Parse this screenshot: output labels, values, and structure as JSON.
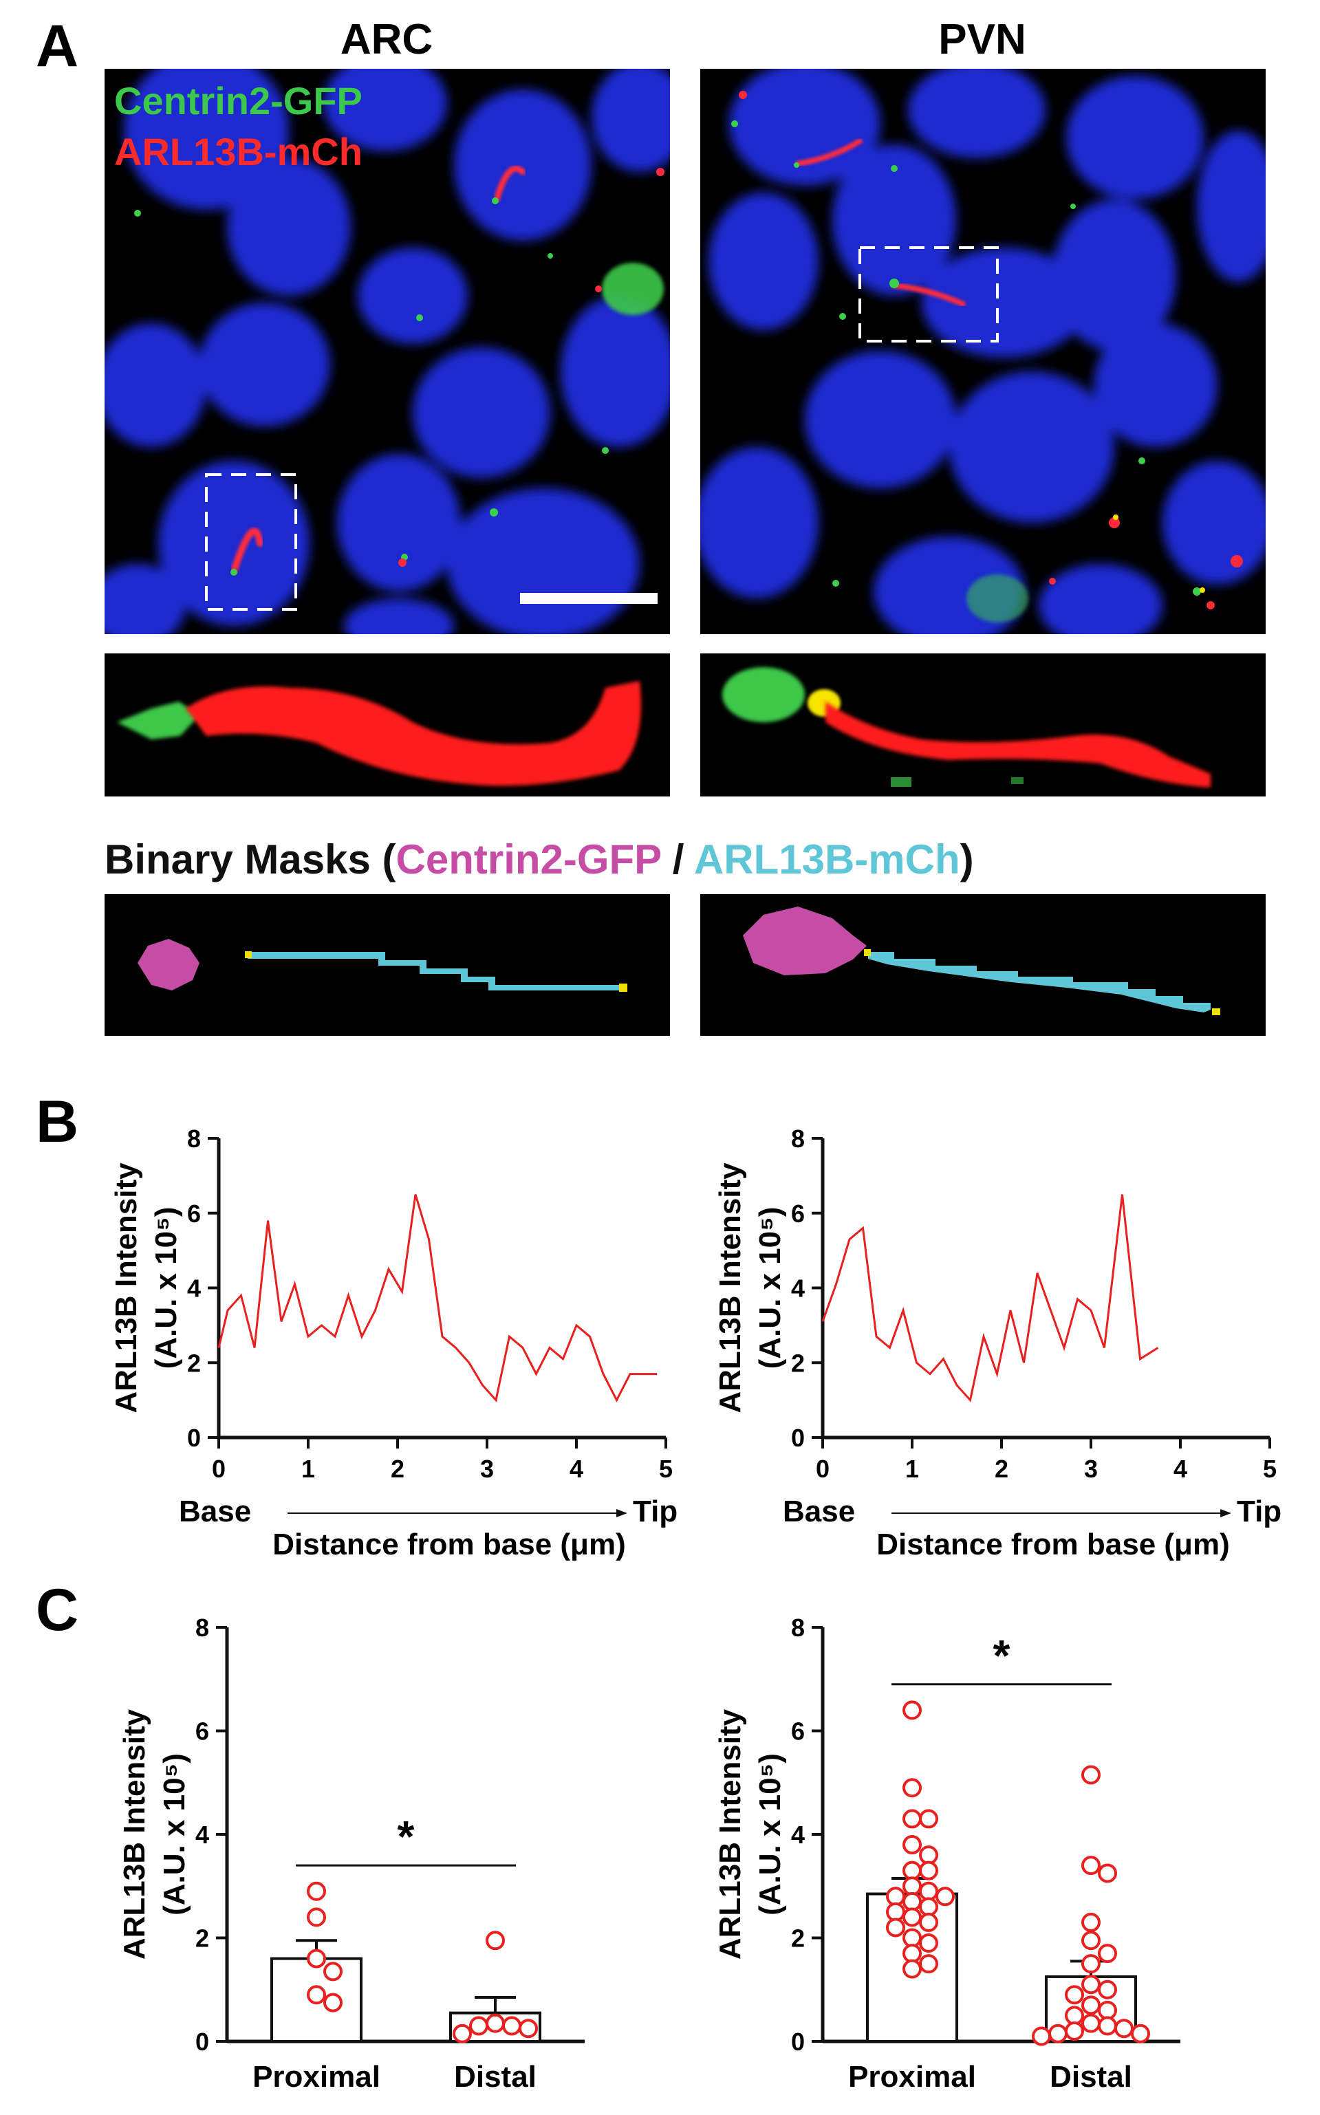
{
  "panels": {
    "A": "A",
    "B": "B",
    "C": "C"
  },
  "columns": [
    "ARC",
    "PVN"
  ],
  "micrograph": {
    "channel_labels": [
      {
        "text": "Centrin2-GFP",
        "color": "#3cc84a"
      },
      {
        "text": "ARL13B-mCh",
        "color": "#ff2a2a"
      }
    ],
    "colors": {
      "nucleus": "#1f2fd8",
      "cilium": "#ff2a3c",
      "centrin": "#3ccf4a",
      "overlap": "#f5e400",
      "background": "#000000"
    }
  },
  "masks": {
    "title_prefix": "Binary Masks (",
    "centrin": "Centrin2-GFP",
    "separator": " / ",
    "arl13b": "ARL13B-mCh",
    "title_suffix": ")",
    "colors": {
      "centrin": "#c64da6",
      "arl13b": "#5fc6d8",
      "ends": "#f0e000"
    }
  },
  "chart_data": [
    {
      "type": "line",
      "panel": "B",
      "region": "ARC",
      "xlabel": "Distance from base (μm)",
      "ylabel": "ARL13B Intensity",
      "ylabel2": "(A.U. x 10⁵)",
      "base_label": "Base",
      "tip_label": "Tip",
      "xlim": [
        0,
        5
      ],
      "ylim": [
        0,
        8
      ],
      "xticks": [
        "0",
        "1",
        "2",
        "3",
        "4",
        "5"
      ],
      "yticks": [
        "0",
        "2",
        "4",
        "6",
        "8"
      ],
      "color": "#e8201e",
      "x": [
        0,
        0.1,
        0.25,
        0.4,
        0.55,
        0.7,
        0.85,
        1.0,
        1.15,
        1.3,
        1.45,
        1.6,
        1.75,
        1.9,
        2.05,
        2.2,
        2.35,
        2.5,
        2.65,
        2.8,
        2.95,
        3.1,
        3.25,
        3.4,
        3.55,
        3.7,
        3.85,
        4.0,
        4.15,
        4.3,
        4.45,
        4.6,
        4.75,
        4.9
      ],
      "y": [
        2.4,
        3.4,
        3.8,
        2.4,
        5.8,
        3.1,
        4.1,
        2.7,
        3.0,
        2.7,
        3.8,
        2.7,
        3.4,
        4.5,
        3.9,
        6.5,
        5.3,
        2.7,
        2.4,
        2.0,
        1.4,
        1.0,
        2.7,
        2.4,
        1.7,
        2.4,
        2.1,
        3.0,
        2.7,
        1.7,
        1.0,
        1.7,
        1.7,
        1.7
      ]
    },
    {
      "type": "line",
      "panel": "B",
      "region": "PVN",
      "xlabel": "Distance from base (μm)",
      "ylabel": "ARL13B Intensity",
      "ylabel2": "(A.U. x 10⁵)",
      "base_label": "Base",
      "tip_label": "Tip",
      "xlim": [
        0,
        5
      ],
      "ylim": [
        0,
        8
      ],
      "xticks": [
        "0",
        "1",
        "2",
        "3",
        "4",
        "5"
      ],
      "yticks": [
        "0",
        "2",
        "4",
        "6",
        "8"
      ],
      "color": "#e8201e",
      "x": [
        0,
        0.15,
        0.3,
        0.45,
        0.6,
        0.75,
        0.9,
        1.05,
        1.2,
        1.35,
        1.5,
        1.65,
        1.8,
        1.95,
        2.1,
        2.25,
        2.4,
        2.55,
        2.7,
        2.85,
        3.0,
        3.15,
        3.35,
        3.55,
        3.75
      ],
      "y": [
        3.1,
        4.1,
        5.3,
        5.6,
        2.7,
        2.4,
        3.4,
        2.0,
        1.7,
        2.1,
        1.4,
        1.0,
        2.7,
        1.7,
        3.4,
        2.0,
        4.4,
        3.4,
        2.4,
        3.7,
        3.4,
        2.4,
        6.5,
        2.1,
        2.4
      ]
    },
    {
      "type": "bar",
      "panel": "C",
      "region": "ARC",
      "categories": [
        "Proximal",
        "Distal"
      ],
      "values": [
        1.6,
        0.55
      ],
      "errors": [
        0.35,
        0.3
      ],
      "points": [
        [
          2.9,
          2.4,
          1.6,
          1.35,
          0.9,
          0.75
        ],
        [
          1.95,
          0.35,
          0.3,
          0.3,
          0.25,
          0.15
        ]
      ],
      "ylabel": "ARL13B Intensity",
      "ylabel2": "(A.U. x 10⁵)",
      "ylim": [
        0,
        8
      ],
      "yticks": [
        "0",
        "2",
        "4",
        "6",
        "8"
      ],
      "significance": "*",
      "point_color": "#e8201e"
    },
    {
      "type": "bar",
      "panel": "C",
      "region": "PVN",
      "categories": [
        "Proximal",
        "Distal"
      ],
      "values": [
        2.85,
        1.25
      ],
      "errors": [
        0.3,
        0.3
      ],
      "points": [
        [
          6.4,
          4.9,
          4.3,
          4.3,
          3.8,
          3.6,
          3.3,
          3.3,
          3.0,
          2.9,
          2.8,
          2.8,
          2.7,
          2.6,
          2.5,
          2.4,
          2.3,
          2.2,
          2.0,
          1.9,
          1.7,
          1.5,
          1.4
        ],
        [
          5.15,
          3.4,
          3.25,
          2.3,
          1.95,
          1.7,
          1.5,
          1.1,
          1.0,
          0.9,
          0.7,
          0.6,
          0.5,
          0.35,
          0.3,
          0.25,
          0.2,
          0.15,
          0.15,
          0.1
        ]
      ],
      "ylabel": "ARL13B Intensity",
      "ylabel2": "(A.U. x 10⁵)",
      "ylim": [
        0,
        8
      ],
      "yticks": [
        "0",
        "2",
        "4",
        "6",
        "8"
      ],
      "significance": "*",
      "point_color": "#e8201e"
    }
  ]
}
